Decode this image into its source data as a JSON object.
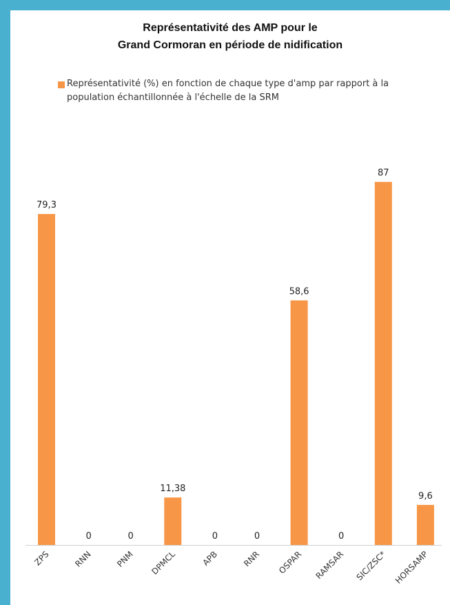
{
  "chart_data": {
    "type": "bar",
    "title_lines": [
      "Représentativité des AMP pour le",
      "Grand Cormoran en période de nidification"
    ],
    "legend": [
      {
        "name": "Représentativité (%) en fonction de chaque type d'amp par rapport à la population échantillonnée à l'échelle de la SRM",
        "color": "#f79646"
      }
    ],
    "categories": [
      "ZPS",
      "RNN",
      "PNM",
      "DPMCL",
      "APB",
      "RNR",
      "OSPAR",
      "RAMSAR",
      "SIC/ZSC*",
      "HORSAMP"
    ],
    "values": [
      79.3,
      0,
      0,
      11.38,
      0,
      0,
      58.6,
      0,
      87,
      9.6
    ],
    "data_labels": [
      "79,3",
      "0",
      "0",
      "11,38",
      "0",
      "0",
      "58,6",
      "0",
      "87",
      "9,6"
    ],
    "ylim": [
      0,
      100
    ],
    "grid": false,
    "legend_position": "top",
    "bar_color": "#f79646"
  }
}
